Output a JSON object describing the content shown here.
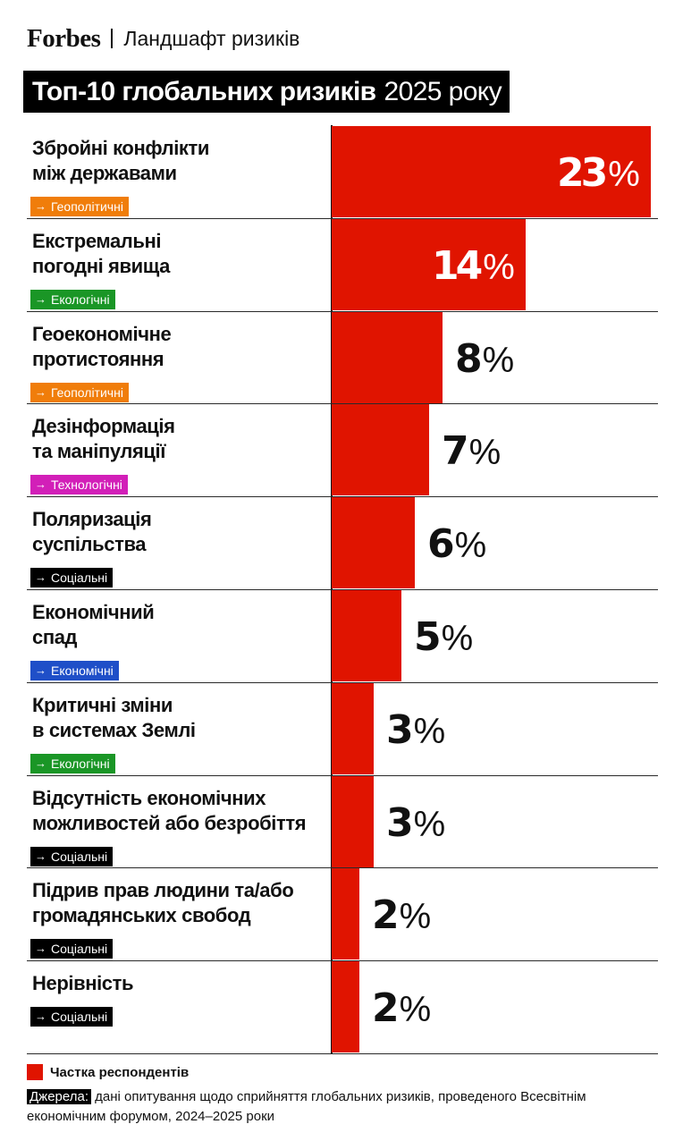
{
  "header": {
    "brand": "Forbes",
    "section": "Ландшафт ризиків"
  },
  "title": {
    "bold": "Топ-10 глобальних ризиків",
    "light": "2025 року"
  },
  "colors": {
    "bar": "#e01400",
    "Геополітичні": "#f07d0a",
    "Екологічні": "#1a9626",
    "Технологічні": "#d21fb8",
    "Соціальні": "#000000",
    "Економічні": "#1f4fc8"
  },
  "chart_data": {
    "type": "bar",
    "orientation": "horizontal",
    "unit": "%",
    "xlim": [
      0,
      23
    ],
    "categories": [
      "Збройні конфлікти між державами",
      "Екстремальні погодні явища",
      "Геоекономічне протистояння",
      "Дезінформація та маніпуляції",
      "Поляризація суспільства",
      "Економічний спад",
      "Критичні зміни в системах Землі",
      "Відсутність економічних можливостей або безробіття",
      "Підрив прав людини та/або громадянських свобод",
      "Нерівність"
    ],
    "values": [
      23,
      14,
      8,
      7,
      6,
      5,
      3,
      3,
      2,
      2
    ],
    "rows": [
      {
        "lines": [
          "Збройні конфлікти",
          "між державами"
        ],
        "tag": "Геополітичні",
        "value": 23,
        "label": "23"
      },
      {
        "lines": [
          "Екстремальні",
          "погодні явища"
        ],
        "tag": "Екологічні",
        "value": 14,
        "label": "14"
      },
      {
        "lines": [
          "Геоекономічне",
          "протистояння"
        ],
        "tag": "Геополітичні",
        "value": 8,
        "label": "8"
      },
      {
        "lines": [
          "Дезінформація",
          "та маніпуляції"
        ],
        "tag": "Технологічні",
        "value": 7,
        "label": "7"
      },
      {
        "lines": [
          "Поляризація",
          "суспільства"
        ],
        "tag": "Соціальні",
        "value": 6,
        "label": "6"
      },
      {
        "lines": [
          "Економічний",
          "спад"
        ],
        "tag": "Економічні",
        "value": 5,
        "label": "5"
      },
      {
        "lines": [
          "Критичні зміни",
          "в системах Землі"
        ],
        "tag": "Екологічні",
        "value": 3,
        "label": "3"
      },
      {
        "lines": [
          "Відсутність економічних",
          "можливостей або безробіття"
        ],
        "tag": "Соціальні",
        "value": 3,
        "label": "3"
      },
      {
        "lines": [
          "Підрив прав людини та/або",
          "громадянських свобод"
        ],
        "tag": "Соціальні",
        "value": 2,
        "label": "2"
      },
      {
        "lines": [
          "Нерівність"
        ],
        "tag": "Соціальні",
        "value": 2,
        "label": "2"
      }
    ],
    "percent_sign": "%",
    "tag_arrow": "→",
    "legend": "Частка респондентів"
  },
  "source": {
    "label": "Джерела:",
    "text": "дані опитування щодо сприйняття глобальних ризиків, проведеного Всесвітнім економічним форумом, 2024–2025 роки"
  }
}
